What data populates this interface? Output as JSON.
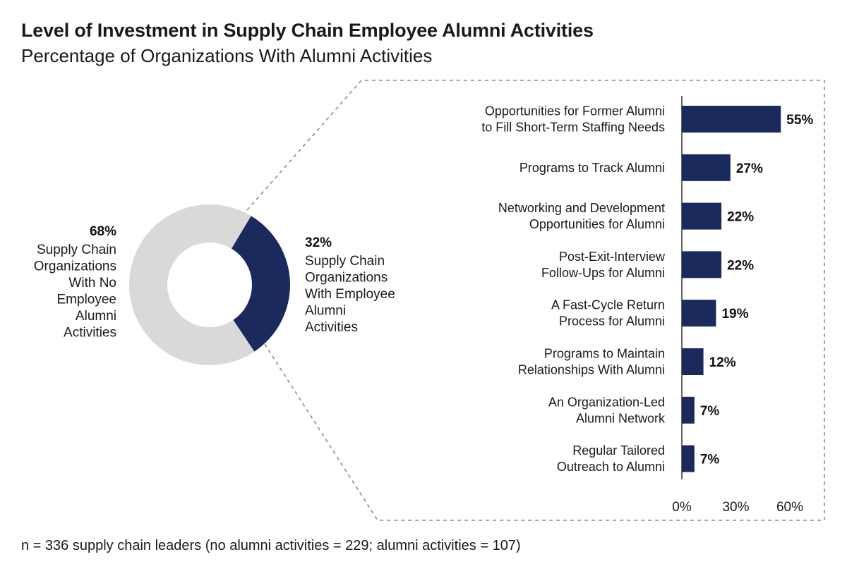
{
  "title": "Level of Investment in Supply Chain Employee Alumni Activities",
  "subtitle": "Percentage of Organizations With Alumni Activities",
  "footnote": "n = 336 supply chain leaders (no alumni activities = 229; alumni activities = 107)",
  "colors": {
    "navy": "#1b2a5c",
    "light_gray": "#d9d9d9",
    "dash": "#8a8a8a",
    "axis": "#333333"
  },
  "chart_data": [
    {
      "type": "pie",
      "style": "donut",
      "slices": [
        {
          "value": 68,
          "pct_label": "68%",
          "label_lines": [
            "Supply Chain",
            "Organizations",
            "With No",
            "Employee",
            "Alumni",
            "Activities"
          ],
          "color": "#d9d9d9"
        },
        {
          "value": 32,
          "pct_label": "32%",
          "label_lines": [
            "Supply Chain",
            "Organizations",
            "With Employee",
            "Alumni",
            "Activities"
          ],
          "color": "#1b2a5c"
        }
      ]
    },
    {
      "type": "bar",
      "orientation": "horizontal",
      "categories": [
        [
          "Opportunities for Former Alumni",
          "to Fill Short-Term Staffing Needs"
        ],
        [
          "Programs to Track Alumni"
        ],
        [
          "Networking and Development",
          "Opportunities for Alumni"
        ],
        [
          "Post-Exit-Interview",
          "Follow-Ups for Alumni"
        ],
        [
          "A Fast-Cycle Return",
          "Process for Alumni"
        ],
        [
          "Programs to Maintain",
          "Relationships With Alumni"
        ],
        [
          "An Organization-Led",
          "Alumni Network"
        ],
        [
          "Regular Tailored",
          "Outreach to Alumni"
        ]
      ],
      "values": [
        55,
        27,
        22,
        22,
        19,
        12,
        7,
        7
      ],
      "value_labels": [
        "55%",
        "27%",
        "22%",
        "22%",
        "19%",
        "12%",
        "7%",
        "7%"
      ],
      "xlim": [
        0,
        60
      ],
      "ticks": [
        "0%",
        "30%",
        "60%"
      ],
      "tick_values": [
        0,
        30,
        60
      ],
      "color": "#1b2a5c"
    }
  ]
}
